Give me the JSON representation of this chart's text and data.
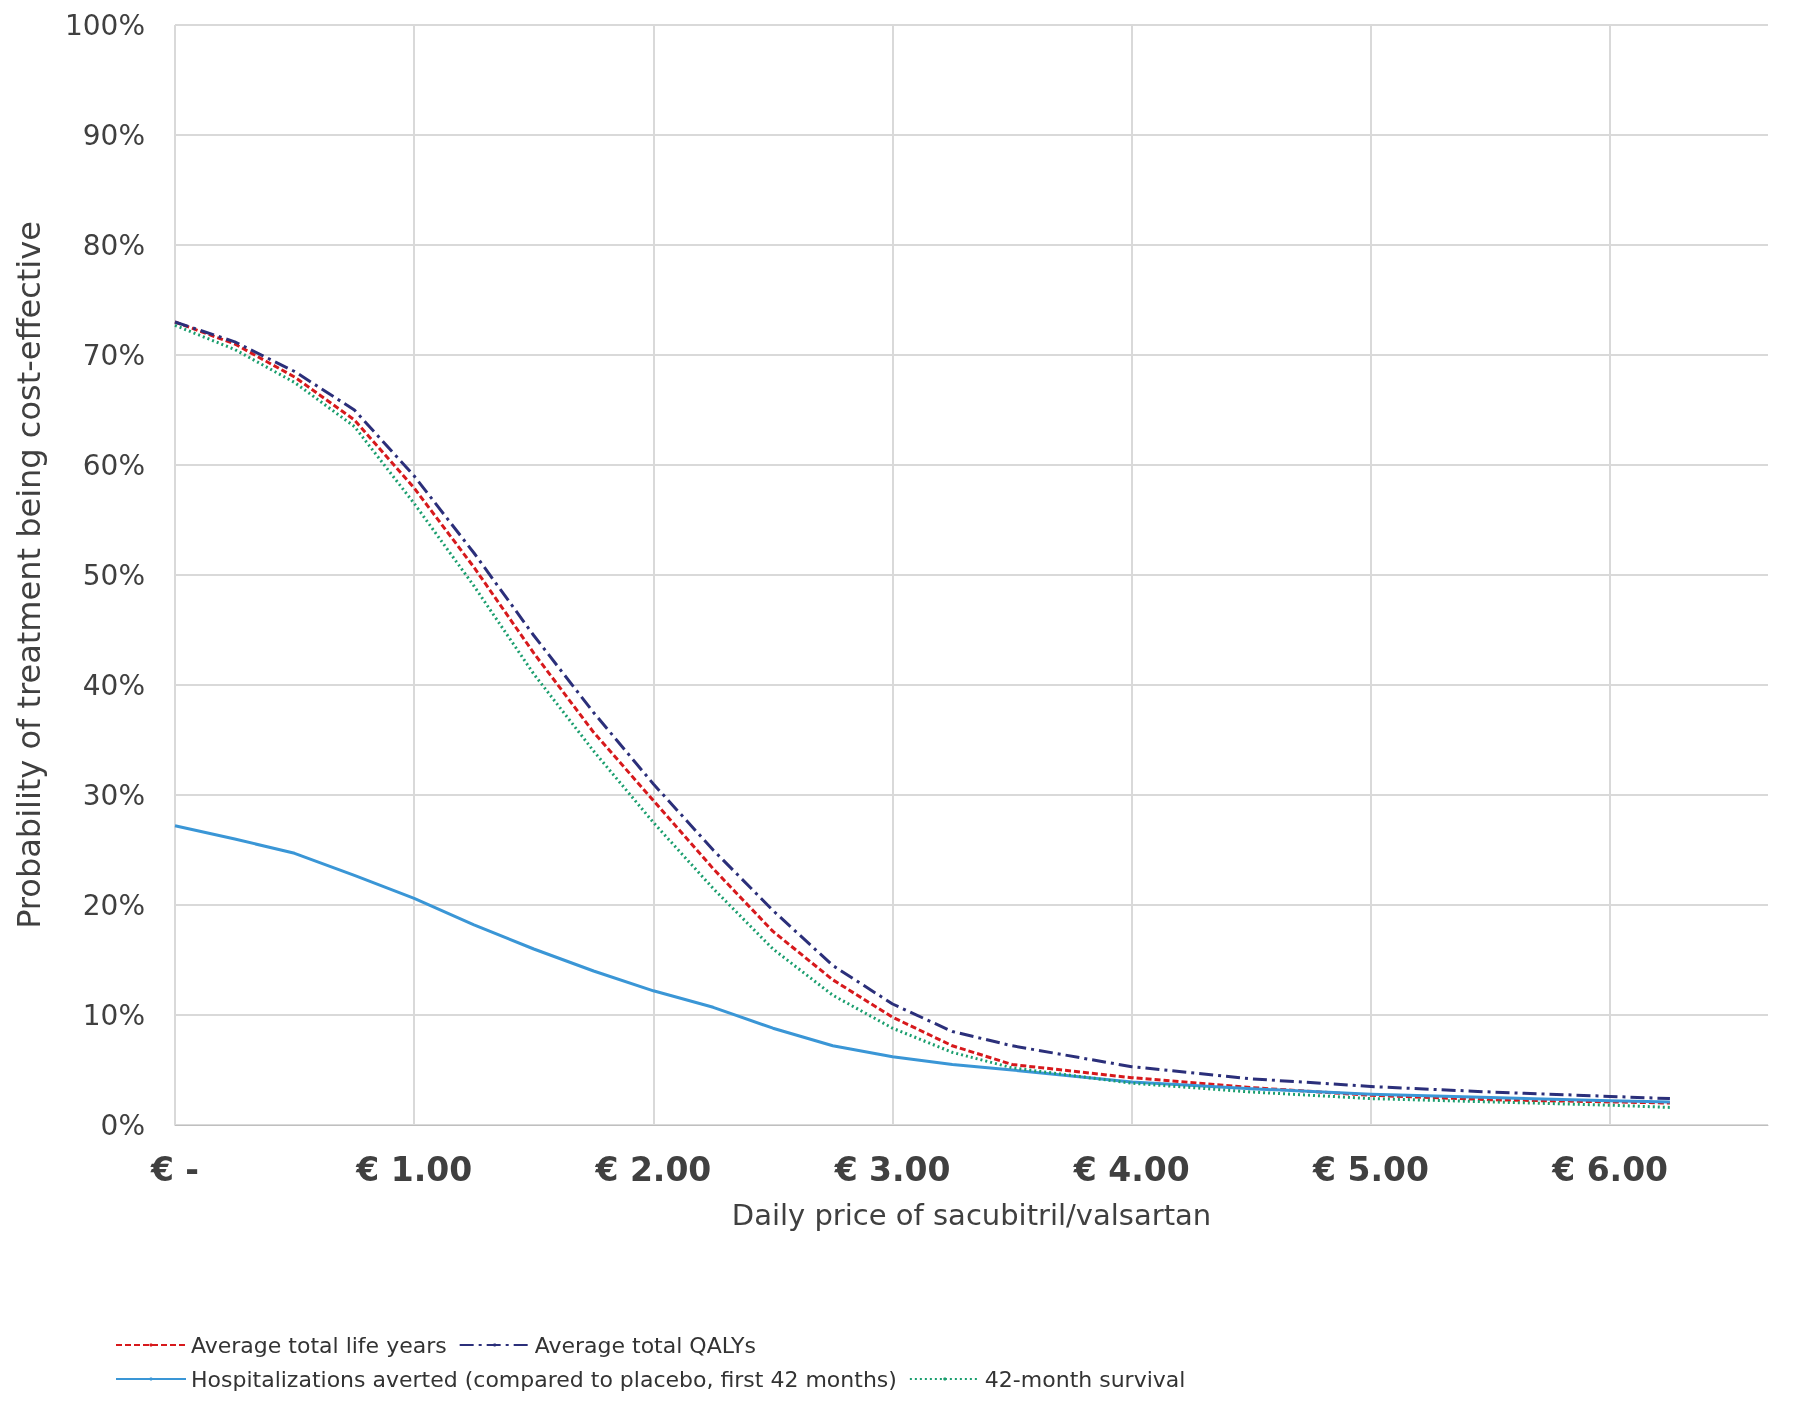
{
  "chart_data": {
    "type": "line",
    "xlabel": "Daily price of sacubitril/valsartan",
    "ylabel": "Probability of treatment being cost-effective",
    "x": [
      0,
      0.25,
      0.5,
      0.75,
      1,
      1.25,
      1.5,
      1.75,
      2,
      2.25,
      2.5,
      2.75,
      3,
      3.25,
      3.5,
      4,
      4.5,
      5,
      5.5,
      6,
      6.25
    ],
    "series": [
      {
        "name": "Average total life years",
        "color": "#d7191c",
        "line_style": "dashed",
        "values": [
          73,
          71,
          68,
          64.1,
          57.9,
          50.7,
          42.9,
          35.7,
          29.5,
          23.3,
          17.6,
          13.2,
          9.8,
          7.2,
          5.5,
          4.3,
          3.4,
          2.7,
          2.3,
          2.1,
          2.0
        ]
      },
      {
        "name": "Average total QALYs",
        "color": "#2b2f7a",
        "line_style": "dashdot",
        "values": [
          73,
          71.2,
          68.5,
          65,
          59,
          52,
          44.5,
          37.5,
          31,
          25,
          19.5,
          14.5,
          11,
          8.5,
          7.2,
          5.3,
          4.2,
          3.5,
          3.0,
          2.6,
          2.4
        ]
      },
      {
        "name": "Hospitalizations averted (compared to placebo, first 42 months)",
        "color": "#3a96d6",
        "line_style": "solid",
        "values": [
          27.2,
          26,
          24.7,
          22.7,
          20.6,
          18.2,
          16,
          14,
          12.2,
          10.7,
          8.8,
          7.2,
          6.2,
          5.5,
          5.0,
          3.9,
          3.3,
          2.8,
          2.5,
          2.2,
          2.1
        ]
      },
      {
        "name": "42-month survival",
        "color": "#1a9e6e",
        "line_style": "dotted",
        "values": [
          72.7,
          70.5,
          67.5,
          63.5,
          56.5,
          49,
          41,
          34,
          27.5,
          21.5,
          16,
          11.8,
          8.8,
          6.6,
          5.2,
          3.8,
          3.0,
          2.4,
          2.1,
          1.8,
          1.6
        ]
      }
    ],
    "xlim": [
      0,
      6.66
    ],
    "xticks": [
      {
        "value": 0,
        "label": "€ -"
      },
      {
        "value": 1,
        "label": "€ 1.00"
      },
      {
        "value": 2,
        "label": "€ 2.00"
      },
      {
        "value": 3,
        "label": "€ 3.00"
      },
      {
        "value": 4,
        "label": "€ 4.00"
      },
      {
        "value": 5,
        "label": "€ 5.00"
      },
      {
        "value": 6,
        "label": "€ 6.00"
      }
    ],
    "ylim": [
      0,
      100
    ],
    "yticks": [
      {
        "value": 0,
        "label": "0%"
      },
      {
        "value": 10,
        "label": "10%"
      },
      {
        "value": 20,
        "label": "20%"
      },
      {
        "value": 30,
        "label": "30%"
      },
      {
        "value": 40,
        "label": "40%"
      },
      {
        "value": 50,
        "label": "50%"
      },
      {
        "value": 60,
        "label": "60%"
      },
      {
        "value": 70,
        "label": "70%"
      },
      {
        "value": 80,
        "label": "80%"
      },
      {
        "value": 90,
        "label": "90%"
      },
      {
        "value": 100,
        "label": "100%"
      }
    ],
    "grid": true,
    "legend": "bottom",
    "marker": "none"
  }
}
